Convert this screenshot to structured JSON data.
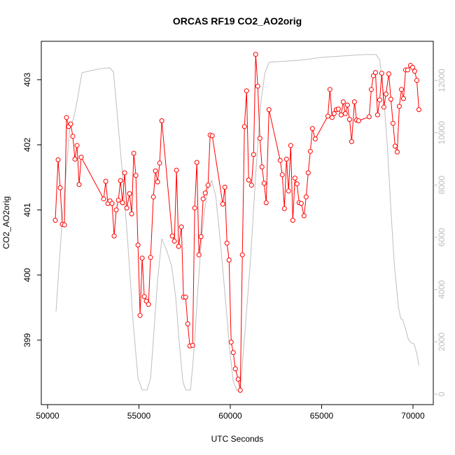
{
  "chart_data": {
    "type": "line",
    "title": "ORCAS RF19 CO2_AO2orig",
    "x_label": "UTC Seconds",
    "y_label": "CO2_AO2orig",
    "xlim": [
      49655,
      71112
    ],
    "xticks": [
      50000,
      55000,
      60000,
      65000,
      70000
    ],
    "ylim": [
      398.01,
      403.59
    ],
    "yticks": [
      399,
      400,
      401,
      402,
      403
    ],
    "y2lim": [
      -402,
      13500
    ],
    "y2ticks": [
      0,
      2000,
      4000,
      6000,
      8000,
      10000,
      12000
    ],
    "series": [
      {
        "color": "#ff0000",
        "marker": "circle",
        "x": [
          50422,
          50575,
          50690,
          50805,
          50920,
          51035,
          51150,
          51265,
          51381,
          51496,
          51611,
          51726,
          51841,
          53068,
          53183,
          53298,
          53413,
          53528,
          53643,
          53758,
          53873,
          53988,
          54103,
          54218,
          54334,
          54487,
          54602,
          54717,
          54832,
          54947,
          55062,
          55177,
          55292,
          55407,
          55522,
          55637,
          55791,
          55906,
          56021,
          56136,
          56251,
          56826,
          56941,
          57056,
          57172,
          57325,
          57440,
          57555,
          57670,
          57785,
          57938,
          58054,
          58169,
          58284,
          58399,
          58514,
          58629,
          58782,
          58897,
          59012,
          59588,
          59703,
          59818,
          59933,
          60048,
          60163,
          60278,
          60431,
          60546,
          60661,
          60776,
          60891,
          61006,
          61160,
          61275,
          61390,
          61505,
          61620,
          61735,
          61850,
          61965,
          62119,
          62732,
          62847,
          62962,
          63077,
          63192,
          63308,
          63423,
          63538,
          63653,
          63768,
          63883,
          64036,
          64151,
          64266,
          64381,
          64496,
          64650,
          65340,
          65455,
          65570,
          65685,
          65800,
          65915,
          66068,
          66183,
          66298,
          66413,
          66528,
          66643,
          66797,
          66912,
          67027,
          67602,
          67717,
          67833,
          67948,
          68063,
          68178,
          68293,
          68408,
          68523,
          68676,
          68792,
          68907,
          69022,
          69137,
          69252,
          69367,
          69482,
          69597,
          69712,
          69865,
          69980,
          70095,
          70210,
          70326
        ],
        "values": [
          400.84,
          401.77,
          401.34,
          400.78,
          400.77,
          402.42,
          402.28,
          402.32,
          402.13,
          401.78,
          401.99,
          401.39,
          401.81,
          401.17,
          401.44,
          401.1,
          401.14,
          401.1,
          400.6,
          401.0,
          401.15,
          401.45,
          401.11,
          401.57,
          401.03,
          401.25,
          400.94,
          401.87,
          401.53,
          400.46,
          399.38,
          400.26,
          399.67,
          399.6,
          399.55,
          400.27,
          401.2,
          401.6,
          401.43,
          401.72,
          402.37,
          400.6,
          400.52,
          401.61,
          400.44,
          400.74,
          399.66,
          399.66,
          399.25,
          398.91,
          398.92,
          401.03,
          401.73,
          400.31,
          400.59,
          401.17,
          401.26,
          401.38,
          402.15,
          402.14,
          401.09,
          401.35,
          400.49,
          400.23,
          398.97,
          398.81,
          398.56,
          398.4,
          398.23,
          400.31,
          402.28,
          402.83,
          401.46,
          401.38,
          401.85,
          403.39,
          402.9,
          402.1,
          401.66,
          401.41,
          401.11,
          402.54,
          401.76,
          401.54,
          401.02,
          401.78,
          401.29,
          401.99,
          400.84,
          401.49,
          401.4,
          401.11,
          401.1,
          400.91,
          401.2,
          401.57,
          401.9,
          402.25,
          402.09,
          402.44,
          402.85,
          402.42,
          402.48,
          402.54,
          402.55,
          402.46,
          402.66,
          402.48,
          402.61,
          402.39,
          402.05,
          402.66,
          402.38,
          402.37,
          402.43,
          402.85,
          403.06,
          403.11,
          402.46,
          402.69,
          403.1,
          402.58,
          402.78,
          403.09,
          402.7,
          402.33,
          401.98,
          401.89,
          402.59,
          402.85,
          402.71,
          403.15,
          403.15,
          403.22,
          403.19,
          403.13,
          402.99,
          402.54
        ]
      },
      {
        "color": "#bebebe",
        "axis": "y2",
        "x": [
          50460,
          50652,
          50844,
          51035,
          51227,
          51419,
          51611,
          51880,
          52378,
          52953,
          53413,
          53605,
          53835,
          54103,
          54372,
          54679,
          54947,
          55177,
          55446,
          55637,
          55829,
          56021,
          56251,
          56520,
          56788,
          57018,
          57210,
          57402,
          57555,
          57823,
          58015,
          58207,
          58399,
          58591,
          58782,
          58974,
          59204,
          59473,
          59741,
          59971,
          60163,
          60355,
          60546,
          60815,
          61083,
          61390,
          61658,
          61889,
          62119,
          62732,
          63883,
          65033,
          66183,
          67334,
          67986,
          68178,
          68370,
          68600,
          68792,
          68983,
          69213,
          69328,
          69443,
          69597,
          69750,
          69904,
          70057,
          70210,
          70326
        ],
        "values": [
          3161,
          5170,
          7046,
          8653,
          10260,
          10528,
          11198,
          12296,
          12377,
          12457,
          12484,
          12323,
          10528,
          8385,
          5974,
          2759,
          616,
          161,
          161,
          616,
          2491,
          4367,
          5947,
          5492,
          4903,
          3670,
          1956,
          482,
          161,
          161,
          1688,
          3831,
          5706,
          7046,
          7849,
          8171,
          7581,
          5706,
          3563,
          1688,
          482,
          161,
          161,
          2491,
          4903,
          8385,
          11064,
          12270,
          12698,
          12725,
          12779,
          12886,
          12940,
          12993,
          12993,
          12779,
          11600,
          9457,
          7046,
          4903,
          3295,
          2893,
          2840,
          2491,
          2090,
          1956,
          1929,
          1554,
          1098
        ]
      }
    ]
  }
}
